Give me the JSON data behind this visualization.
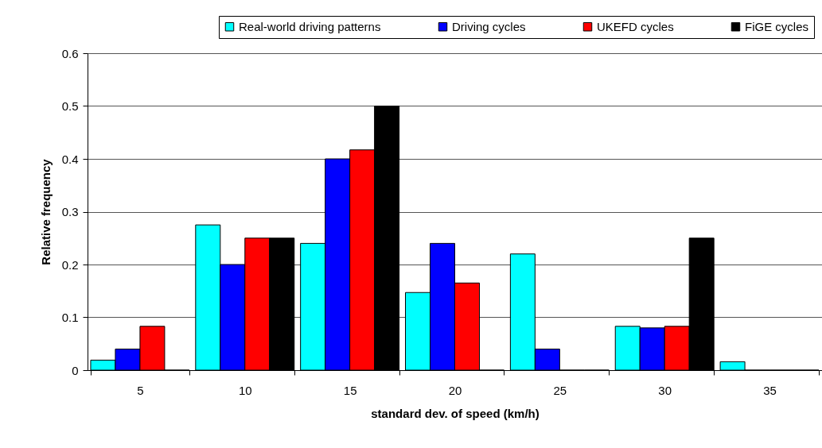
{
  "chart_data": {
    "type": "bar",
    "xlabel": "standard dev. of speed (km/h)",
    "ylabel": "Relative frequency",
    "categories": [
      "5",
      "10",
      "15",
      "20",
      "25",
      "30",
      "35"
    ],
    "series": [
      {
        "name": "Real-world driving patterns",
        "color": "#00ffff",
        "values": [
          0.019,
          0.275,
          0.24,
          0.147,
          0.22,
          0.083,
          0.016
        ]
      },
      {
        "name": "Driving cycles",
        "color": "#0000ff",
        "values": [
          0.04,
          0.2,
          0.4,
          0.24,
          0.04,
          0.08,
          0
        ]
      },
      {
        "name": "UKEFD cycles",
        "color": "#ff0000",
        "values": [
          0.083,
          0.25,
          0.417,
          0.165,
          0,
          0.083,
          0
        ]
      },
      {
        "name": "FiGE cycles",
        "color": "#000000",
        "values": [
          0,
          0.25,
          0.5,
          0,
          0,
          0.25,
          0
        ]
      }
    ],
    "ylim": [
      0,
      0.6
    ],
    "yticks": [
      0,
      0.1,
      0.2,
      0.3,
      0.4,
      0.5,
      0.6
    ],
    "grid": "y",
    "legend": "top right"
  }
}
